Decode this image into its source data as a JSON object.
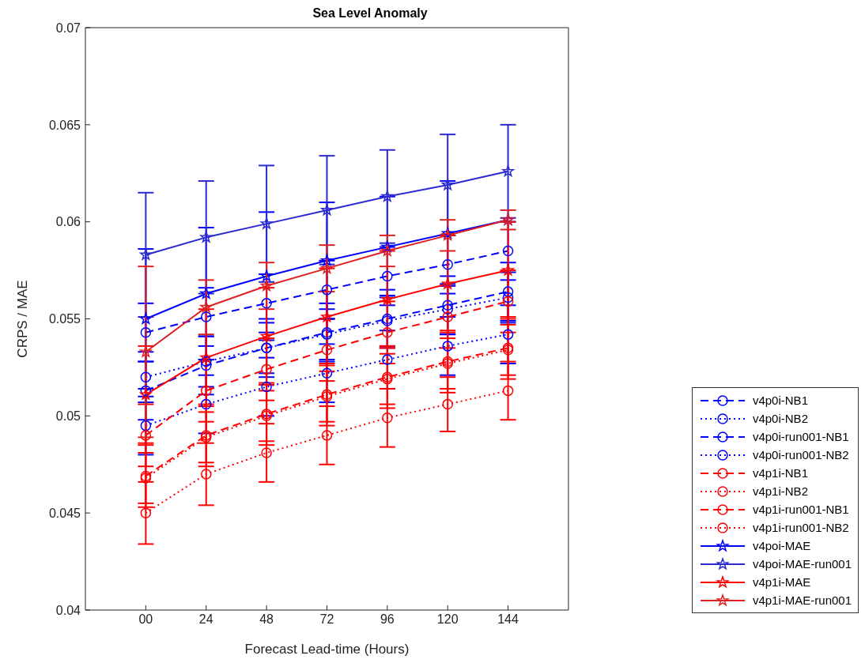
{
  "chart_data": {
    "type": "line",
    "title": "Sea Level Anomaly",
    "xlabel": "Forecast Lead-time (Hours)",
    "ylabel": "CRPS / MAE",
    "x": [
      0,
      24,
      48,
      72,
      96,
      120,
      144
    ],
    "xlim": [
      -24,
      168
    ],
    "xticks": [
      {
        "value": 0,
        "label": "00"
      },
      24,
      48,
      72,
      96,
      120,
      144
    ],
    "ylim": [
      0.04,
      0.07
    ],
    "yticks": [
      0.04,
      0.045,
      0.05,
      0.055,
      0.06,
      0.065,
      0.07
    ],
    "grid": false,
    "legend": "right",
    "series": [
      {
        "name": "v4p0i-NB1",
        "color": "#0000ff",
        "line_style": "dashed",
        "marker": "circle",
        "values": [
          0.0513,
          0.0526,
          0.0535,
          0.0543,
          0.055,
          0.0557,
          0.0564
        ],
        "errors": [
          0.0015,
          0.0015,
          0.0015,
          0.0015,
          0.0015,
          0.0015,
          0.0015
        ]
      },
      {
        "name": "v4p0i-NB2",
        "color": "#0000ff",
        "line_style": "dotted",
        "marker": "circle",
        "values": [
          0.0495,
          0.0506,
          0.0515,
          0.0522,
          0.0529,
          0.0536,
          0.0542
        ],
        "errors": [
          0.0015,
          0.0015,
          0.0015,
          0.0015,
          0.0015,
          0.0015,
          0.0015
        ]
      },
      {
        "name": "v4p0i-run001-NB1",
        "color": "#0000ff",
        "line_style": "dashed",
        "marker": "circle",
        "values": [
          0.0543,
          0.0551,
          0.0558,
          0.0565,
          0.0572,
          0.0578,
          0.0585
        ],
        "errors": [
          0.0015,
          0.0015,
          0.0015,
          0.0015,
          0.0015,
          0.0015,
          0.0015
        ]
      },
      {
        "name": "v4p0i-run001-NB2",
        "color": "#0000ff",
        "line_style": "dotted",
        "marker": "circle",
        "values": [
          0.052,
          0.0528,
          0.0535,
          0.0542,
          0.0549,
          0.0555,
          0.0561
        ],
        "errors": [
          0.0013,
          0.0013,
          0.0013,
          0.0013,
          0.0013,
          0.0013,
          0.0013
        ]
      },
      {
        "name": "v4p1i-NB1",
        "color": "#ff0000",
        "line_style": "dashed",
        "marker": "circle",
        "values": [
          0.0469,
          0.049,
          0.0501,
          0.0511,
          0.052,
          0.0528,
          0.0535
        ],
        "errors": [
          0.0016,
          0.0016,
          0.0016,
          0.0016,
          0.0016,
          0.0016,
          0.0016
        ]
      },
      {
        "name": "v4p1i-NB2",
        "color": "#ff0000",
        "line_style": "dotted",
        "marker": "circle",
        "values": [
          0.045,
          0.047,
          0.0481,
          0.049,
          0.0499,
          0.0506,
          0.0513
        ],
        "errors": [
          0.0016,
          0.0016,
          0.0015,
          0.0015,
          0.0015,
          0.0014,
          0.0015
        ]
      },
      {
        "name": "v4p1i-run001-NB1",
        "color": "#ff0000",
        "line_style": "dashed",
        "marker": "circle",
        "values": [
          0.049,
          0.0513,
          0.0524,
          0.0534,
          0.0543,
          0.0551,
          0.0559
        ],
        "errors": [
          0.0016,
          0.0016,
          0.0016,
          0.0016,
          0.0016,
          0.0016,
          0.0016
        ]
      },
      {
        "name": "v4p1i-run001-NB2",
        "color": "#ff0000",
        "line_style": "dotted",
        "marker": "circle",
        "values": [
          0.0468,
          0.0489,
          0.05,
          0.051,
          0.0519,
          0.0527,
          0.0534
        ],
        "errors": [
          0.0013,
          0.0013,
          0.0013,
          0.0013,
          0.0013,
          0.0013,
          0.0013
        ]
      },
      {
        "name": "v4poi-MAE",
        "color": "#0000ff",
        "line_style": "solid",
        "marker": "star",
        "values": [
          0.055,
          0.0563,
          0.0572,
          0.058,
          0.0587,
          0.0594,
          0.0601
        ],
        "errors": [
          0.0036,
          0.0034,
          0.0033,
          0.003,
          0.0026,
          0.0027,
          null
        ]
      },
      {
        "name": "v4poi-MAE-run001",
        "color": "#2a2ad0",
        "line_style": "solid",
        "marker": "star",
        "values": [
          0.0583,
          0.0592,
          0.0599,
          0.0606,
          0.0613,
          0.0619,
          0.0626
        ],
        "errors": [
          0.0032,
          0.0029,
          0.003,
          0.0028,
          0.0024,
          0.0026,
          0.0024
        ]
      },
      {
        "name": "v4p1i-MAE",
        "color": "#ff0000",
        "line_style": "solid",
        "marker": "star",
        "values": [
          0.0511,
          0.053,
          0.0541,
          0.0551,
          0.056,
          0.0568,
          0.0575
        ],
        "errors": [
          0.0025,
          0.0025,
          0.0025,
          0.0025,
          0.0025,
          0.0025,
          0.0025
        ]
      },
      {
        "name": "v4p1i-MAE-run001",
        "color": "#e02020",
        "line_style": "solid",
        "marker": "star",
        "values": [
          0.0533,
          0.0556,
          0.0567,
          0.0576,
          0.0585,
          0.0593,
          0.0601
        ],
        "errors": [
          0.0044,
          0.0014,
          0.0012,
          0.0012,
          0.0008,
          0.0008,
          0.0005
        ]
      }
    ]
  }
}
